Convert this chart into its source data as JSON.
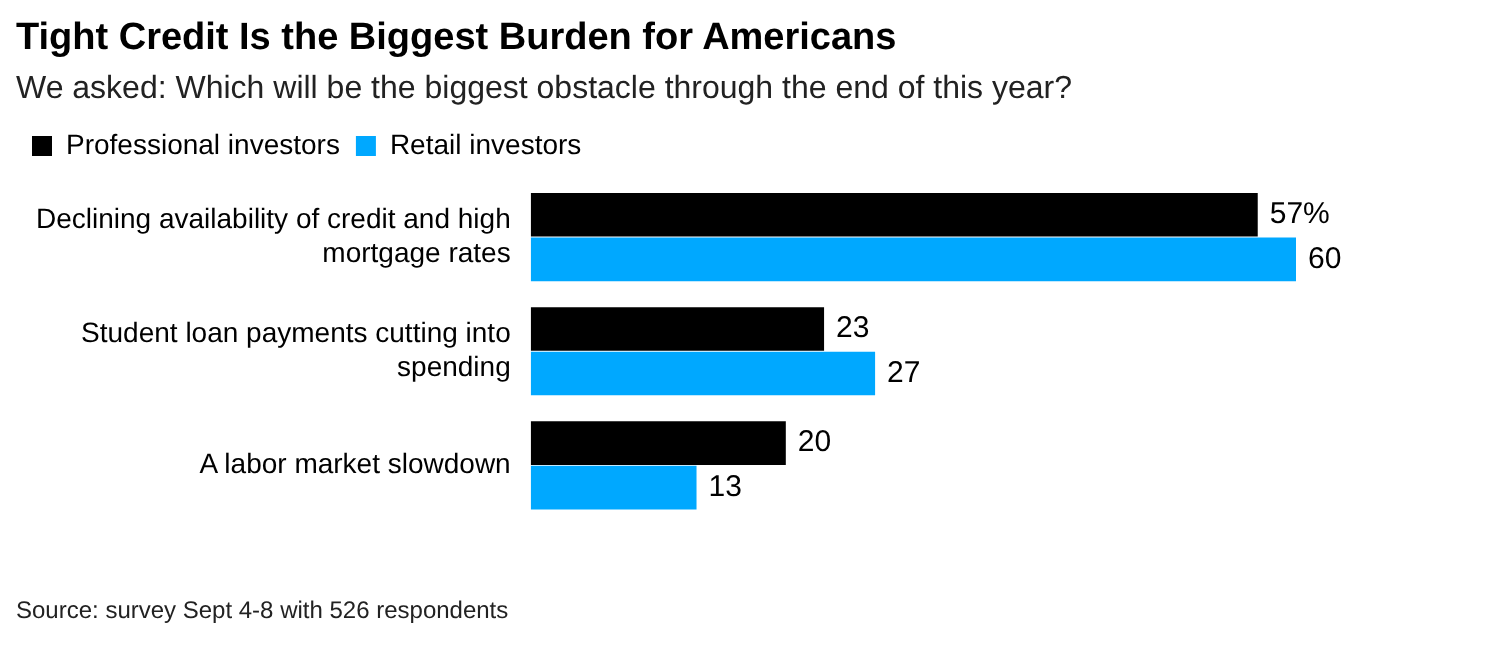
{
  "chart_data": {
    "type": "bar",
    "orientation": "horizontal",
    "title": "Tight Credit Is the Biggest Burden for Americans",
    "subtitle": "We asked: Which will be the biggest obstacle through the end of this year?",
    "categories": [
      "Declining availability of credit and high mortgage rates",
      "Student loan payments cutting into spending",
      "A labor market slowdown"
    ],
    "series": [
      {
        "name": "Professional investors",
        "color": "#000000",
        "values": [
          57,
          23,
          20
        ],
        "value_labels": [
          "57%",
          "23",
          "20"
        ]
      },
      {
        "name": "Retail investors",
        "color": "#00a8ff",
        "values": [
          60,
          27,
          13
        ],
        "value_labels": [
          "60",
          "27",
          "13"
        ]
      }
    ],
    "legend": "top left",
    "grid": false,
    "annotations": [
      "Source: survey Sept 4-8 with 526 respondents"
    ]
  }
}
